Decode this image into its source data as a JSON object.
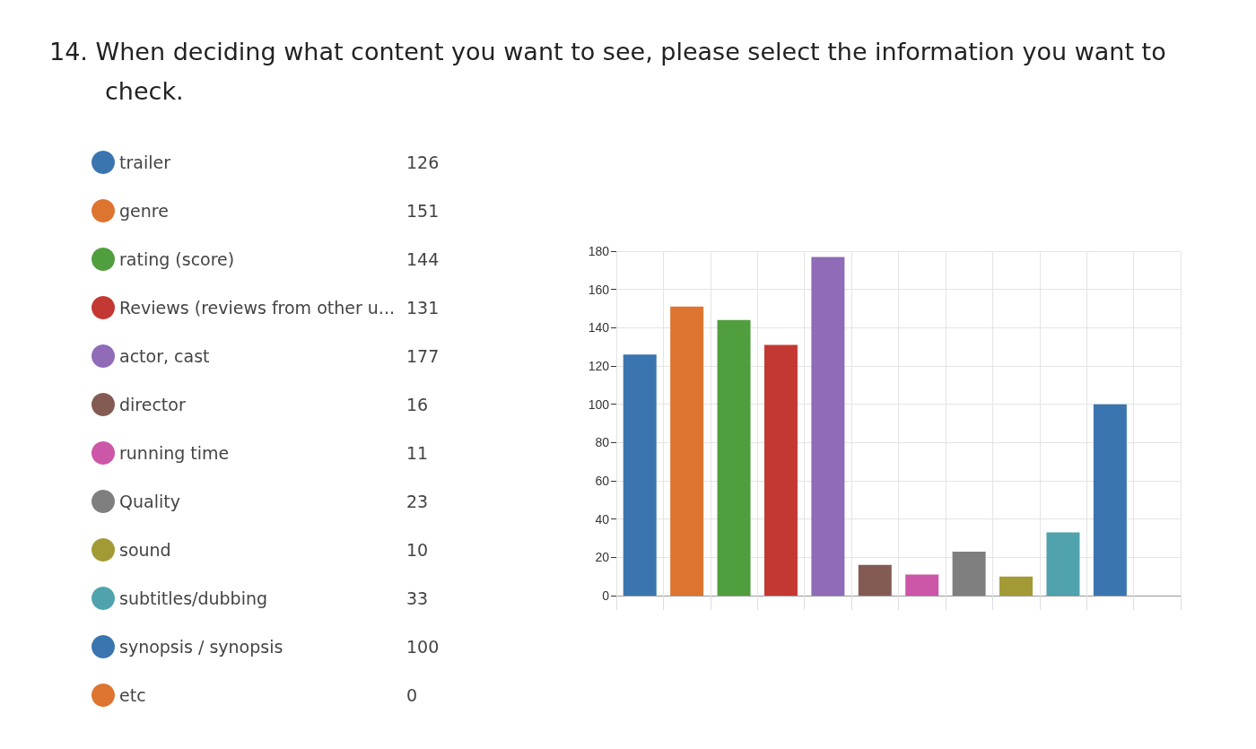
{
  "chart_data": {
    "type": "bar",
    "title": "14. When deciding what content you want to see, please select the information you want to check.",
    "categories": [
      null,
      null,
      null,
      null,
      null,
      null,
      null,
      null,
      null,
      null,
      null,
      null
    ],
    "series": [
      {
        "name": "trailer",
        "color": "#3a75b0",
        "values": [
          126,
          null,
          null,
          null,
          null,
          null,
          null,
          null,
          null,
          null,
          null,
          null
        ]
      },
      {
        "name": "genre",
        "color": "#dd7530",
        "values": [
          null,
          151,
          null,
          null,
          null,
          null,
          null,
          null,
          null,
          null,
          null,
          null
        ]
      },
      {
        "name": "rating (score)",
        "color": "#519e3e",
        "values": [
          null,
          null,
          144,
          null,
          null,
          null,
          null,
          null,
          null,
          null,
          null,
          null
        ]
      },
      {
        "name": "Reviews (reviews from other u...",
        "color": "#c43833",
        "values": [
          null,
          null,
          null,
          131,
          null,
          null,
          null,
          null,
          null,
          null,
          null,
          null
        ]
      },
      {
        "name": "actor, cast",
        "color": "#8f6bb8",
        "values": [
          null,
          null,
          null,
          null,
          177,
          null,
          null,
          null,
          null,
          null,
          null,
          null
        ]
      },
      {
        "name": "director",
        "color": "#845b53",
        "values": [
          null,
          null,
          null,
          null,
          null,
          16,
          null,
          null,
          null,
          null,
          null,
          null
        ]
      },
      {
        "name": "running time",
        "color": "#cc56a8",
        "values": [
          null,
          null,
          null,
          null,
          null,
          null,
          11,
          null,
          null,
          null,
          null,
          null
        ]
      },
      {
        "name": "Quality",
        "color": "#7f7f7f",
        "values": [
          null,
          null,
          null,
          null,
          null,
          null,
          null,
          23,
          null,
          null,
          null,
          null
        ]
      },
      {
        "name": "sound",
        "color": "#a39a35",
        "values": [
          null,
          null,
          null,
          null,
          null,
          null,
          null,
          null,
          10,
          null,
          null,
          null
        ]
      },
      {
        "name": "subtitles/dubbing",
        "color": "#50a3ad",
        "values": [
          null,
          null,
          null,
          null,
          null,
          null,
          null,
          null,
          null,
          33,
          null,
          null
        ]
      },
      {
        "name": "synopsis / synopsis",
        "color": "#3a75b0",
        "values": [
          null,
          null,
          null,
          null,
          null,
          null,
          null,
          null,
          null,
          null,
          100,
          null
        ]
      },
      {
        "name": "etc",
        "color": "#dd7530",
        "values": [
          null,
          null,
          null,
          null,
          null,
          null,
          null,
          null,
          null,
          null,
          null,
          0
        ]
      }
    ],
    "ylim": [
      0,
      180
    ],
    "yticks": [
      0,
      20,
      40,
      60,
      80,
      100,
      120,
      140,
      160,
      180
    ],
    "annotations": [
      "126",
      "151",
      "144",
      "131",
      "177",
      "16",
      "11",
      "23",
      "10",
      "33",
      "100",
      "0"
    ],
    "grid": true,
    "legend": "left",
    "tick_labels": "y"
  }
}
